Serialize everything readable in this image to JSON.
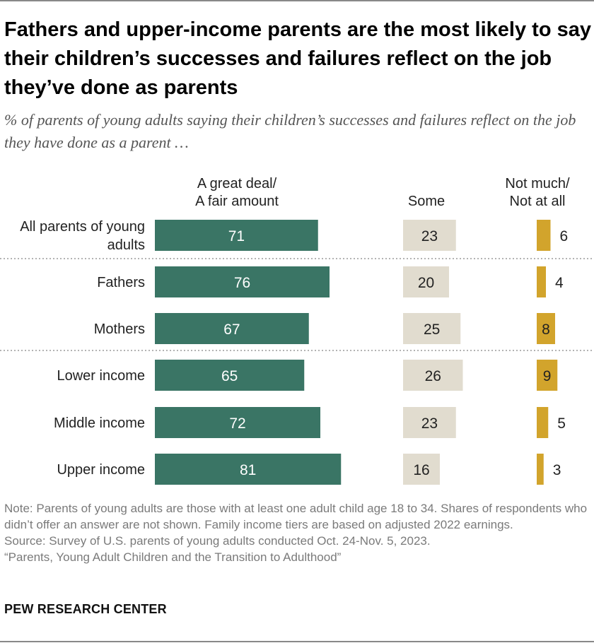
{
  "header": {
    "title": "Fathers and upper-income parents are the most likely to say their children’s successes and failures reflect on the job they’ve done as parents",
    "subtitle": "% of parents of young adults saying their children’s successes and failures reflect on the job they have done as a parent …"
  },
  "columns": {
    "great": [
      "A great deal/",
      "A fair amount"
    ],
    "some": [
      "Some"
    ],
    "notmuch": [
      "Not much/",
      "Not at all"
    ]
  },
  "chart_data": {
    "type": "bar",
    "orientation": "horizontal",
    "categories": [
      "All parents of young adults",
      "Fathers",
      "Mothers",
      "Lower income",
      "Middle income",
      "Upper income"
    ],
    "category_lines": [
      [
        "All parents of young",
        "adults"
      ],
      [
        "Fathers"
      ],
      [
        "Mothers"
      ],
      [
        "Lower income"
      ],
      [
        "Middle income"
      ],
      [
        "Upper income"
      ]
    ],
    "series": [
      {
        "name": "A great deal/A fair amount",
        "values": [
          71,
          76,
          67,
          65,
          72,
          81
        ]
      },
      {
        "name": "Some",
        "values": [
          23,
          20,
          25,
          26,
          23,
          16
        ]
      },
      {
        "name": "Not much/Not at all",
        "values": [
          6,
          4,
          8,
          9,
          5,
          3
        ]
      }
    ],
    "colors": [
      "#3a7565",
      "#e1dccf",
      "#d2a42c"
    ],
    "label_colors": [
      "#ffffff",
      "#222222",
      "#222222"
    ],
    "group_separators_after": [
      0,
      2
    ]
  },
  "notes": {
    "note": "Note: Parents of young adults are those with at least one adult child age 18 to 34. Shares of respondents who didn’t offer an answer are not shown. Family income tiers are based on adjusted 2022 earnings.",
    "source": "Source: Survey of U.S. parents of young adults conducted Oct. 24-Nov. 5, 2023.",
    "report": "“Parents, Young Adult Children and the Transition to Adulthood”"
  },
  "brand": "PEW RESEARCH CENTER"
}
